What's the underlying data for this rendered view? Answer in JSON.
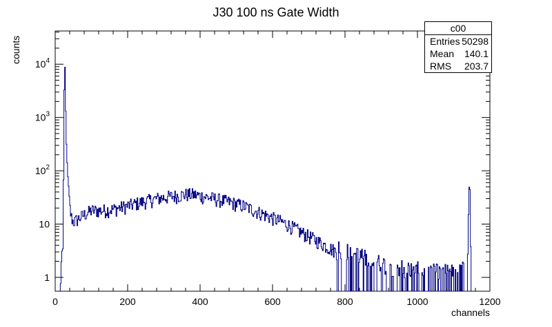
{
  "chart_data": {
    "type": "histogram",
    "title": "J30 100 ns Gate Width",
    "xlabel": "channels",
    "ylabel": "counts",
    "xlim": [
      0,
      1200
    ],
    "ylim": [
      0.55,
      42000
    ],
    "yscale": "log",
    "grid": false,
    "line_color": "#000080",
    "x_ticks": [
      "0",
      "200",
      "400",
      "600",
      "800",
      "1000",
      "1200"
    ],
    "y_ticks": [
      {
        "value": 1,
        "label": "1"
      },
      {
        "value": 10,
        "label": "10"
      },
      {
        "value": 100,
        "label": "10^2"
      },
      {
        "value": 1000,
        "label": "10^3"
      },
      {
        "value": 10000,
        "label": "10^4"
      }
    ],
    "bin_width": 2,
    "series": [
      {
        "description": "coarse envelope of the noisy histogram (channel, counts)",
        "points": [
          [
            14,
            0.6
          ],
          [
            16,
            0.8
          ],
          [
            18,
            1.5
          ],
          [
            20,
            3
          ],
          [
            22,
            6
          ],
          [
            24,
            500
          ],
          [
            26,
            22000
          ],
          [
            28,
            3500
          ],
          [
            30,
            500
          ],
          [
            32,
            200
          ],
          [
            34,
            100
          ],
          [
            36,
            60
          ],
          [
            38,
            35
          ],
          [
            40,
            22
          ],
          [
            44,
            14
          ],
          [
            50,
            11
          ],
          [
            60,
            12
          ],
          [
            80,
            15
          ],
          [
            100,
            18
          ],
          [
            130,
            18
          ],
          [
            160,
            19
          ],
          [
            200,
            22
          ],
          [
            240,
            26
          ],
          [
            280,
            30
          ],
          [
            320,
            33
          ],
          [
            360,
            36
          ],
          [
            380,
            36
          ],
          [
            400,
            34
          ],
          [
            440,
            30
          ],
          [
            480,
            26
          ],
          [
            520,
            22
          ],
          [
            560,
            17
          ],
          [
            600,
            13
          ],
          [
            640,
            10
          ],
          [
            680,
            7
          ],
          [
            720,
            5
          ],
          [
            760,
            3.5
          ],
          [
            800,
            2.5
          ],
          [
            840,
            2
          ],
          [
            880,
            1.6
          ],
          [
            920,
            1.3
          ],
          [
            960,
            1.2
          ],
          [
            1000,
            1.1
          ],
          [
            1040,
            1
          ],
          [
            1080,
            1
          ],
          [
            1120,
            1
          ],
          [
            1138,
            1.5
          ],
          [
            1141,
            12
          ],
          [
            1144,
            130
          ],
          [
            1146,
            10
          ],
          [
            1148,
            0.8
          ]
        ]
      }
    ],
    "stats_box": {
      "title": "c00",
      "rows": [
        {
          "label": "Entries",
          "value": "50298"
        },
        {
          "label": "Mean",
          "value": "140.1"
        },
        {
          "label": "RMS",
          "value": "203.7"
        }
      ]
    }
  }
}
